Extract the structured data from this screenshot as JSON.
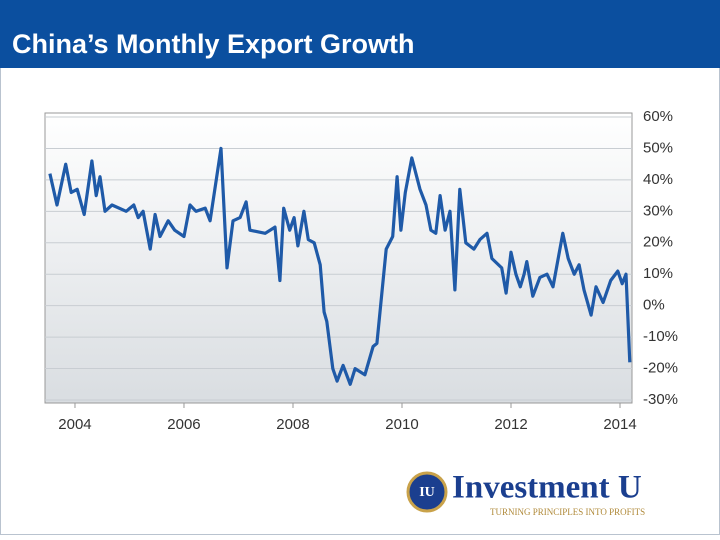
{
  "chart_data": {
    "type": "line",
    "title": "China’s Monthly Export Growth",
    "x": [
      2003.54,
      2003.67,
      2003.83,
      2003.93,
      2004.04,
      2004.17,
      2004.31,
      2004.39,
      2004.46,
      2004.55,
      2004.68,
      2004.94,
      2005.08,
      2005.16,
      2005.25,
      2005.38,
      2005.47,
      2005.56,
      2005.71,
      2005.83,
      2006.0,
      2006.11,
      2006.22,
      2006.39,
      2006.48,
      2006.68,
      2006.79,
      2006.9,
      2007.03,
      2007.14,
      2007.21,
      2007.49,
      2007.67,
      2007.76,
      2007.83,
      2007.94,
      2008.02,
      2008.09,
      2008.2,
      2008.28,
      2008.39,
      2008.5,
      2008.57,
      2008.62,
      2008.73,
      2008.81,
      2008.92,
      2009.05,
      2009.14,
      2009.32,
      2009.47,
      2009.54,
      2009.71,
      2009.83,
      2009.91,
      2009.98,
      2010.06,
      2010.18,
      2010.33,
      2010.44,
      2010.53,
      2010.62,
      2010.7,
      2010.79,
      2010.88,
      2010.97,
      2011.06,
      2011.17,
      2011.32,
      2011.43,
      2011.56,
      2011.65,
      2011.83,
      2011.91,
      2012.0,
      2012.09,
      2012.17,
      2012.24,
      2012.29,
      2012.4,
      2012.53,
      2012.66,
      2012.77,
      2012.95,
      2013.05,
      2013.16,
      2013.25,
      2013.34,
      2013.47,
      2013.56,
      2013.69,
      2013.83,
      2013.96,
      2014.04,
      2014.11,
      2014.18
    ],
    "series": [
      {
        "name": "Export growth",
        "color": "#1f5aa8",
        "values": [
          42,
          32,
          45,
          36,
          37,
          29,
          46,
          35,
          41,
          30,
          32,
          30,
          32,
          28,
          30,
          18,
          29,
          22,
          27,
          24,
          22,
          32,
          30,
          31,
          27,
          50,
          12,
          27,
          28,
          33,
          24,
          23,
          25,
          8,
          31,
          24,
          28,
          19,
          30,
          21,
          20,
          13,
          -2,
          -5,
          -20,
          -24,
          -19,
          -25,
          -20,
          -22,
          -13,
          -12,
          18,
          22,
          41,
          24,
          36,
          47,
          37,
          32,
          24,
          23,
          35,
          24,
          30,
          5,
          37,
          20,
          18,
          21,
          23,
          15,
          12,
          4,
          17,
          10,
          6,
          10,
          14,
          3,
          9,
          10,
          6,
          23,
          15,
          10,
          13,
          5,
          -3,
          6,
          1,
          8,
          11,
          7,
          10,
          -18
        ]
      }
    ],
    "xlim": [
      2003.45,
      2014.22
    ],
    "xticks": [
      2004,
      2006,
      2008,
      2010,
      2012,
      2014
    ],
    "ylim": [
      -30,
      60
    ],
    "yticks": [
      {
        "value": 60,
        "label": "60%"
      },
      {
        "value": 50,
        "label": "50%"
      },
      {
        "value": 40,
        "label": "40%"
      },
      {
        "value": 30,
        "label": "30%"
      },
      {
        "value": 20,
        "label": "20%"
      },
      {
        "value": 10,
        "label": "10%"
      },
      {
        "value": 0,
        "label": "0%"
      },
      {
        "value": -10,
        "label": "-10%"
      },
      {
        "value": -20,
        "label": "-20%"
      },
      {
        "value": -30,
        "label": "-30%"
      }
    ],
    "grid": true
  },
  "logo": {
    "badge": "IU",
    "name": "Investment U",
    "tagline": "TURNING PRINCIPLES INTO PROFITS"
  }
}
